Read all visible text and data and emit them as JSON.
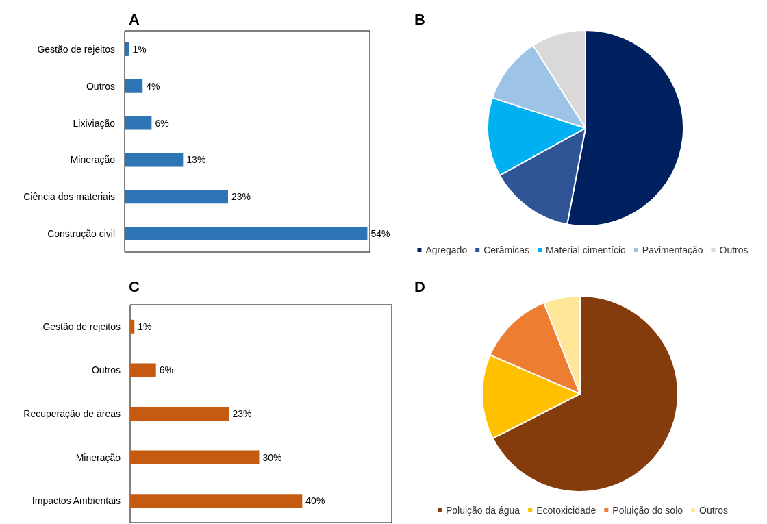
{
  "chart_data": [
    {
      "type": "bar",
      "title": "A",
      "orientation": "horizontal",
      "categories": [
        "Gestão de rejeitos",
        "Outros",
        "Lixiviação",
        "Mineração",
        "Ciência dos materiais",
        "Construção civil"
      ],
      "values": [
        1,
        4,
        6,
        13,
        23,
        54
      ],
      "value_labels": [
        "1%",
        "4%",
        "6%",
        "13%",
        "23%",
        "54%"
      ],
      "color": "#2e75b6"
    },
    {
      "type": "pie",
      "title": "B",
      "categories": [
        "Agregado",
        "Cerâmicas",
        "Material cimentício",
        "Pavimentação",
        "Outros"
      ],
      "values": [
        53,
        14,
        13,
        11,
        9
      ],
      "colors": [
        "#002060",
        "#2f5597",
        "#00b0f0",
        "#9dc3e6",
        "#d9d9d9"
      ],
      "legend": "bottom"
    },
    {
      "type": "bar",
      "title": "C",
      "orientation": "horizontal",
      "categories": [
        "Gestão de rejeitos",
        "Outros",
        "Recuperação de áreas",
        "Mineração",
        "Impactos Ambientais"
      ],
      "values": [
        1,
        6,
        23,
        30,
        40
      ],
      "value_labels": [
        "1%",
        "6%",
        "23%",
        "30%",
        "40%"
      ],
      "color": "#c55a11"
    },
    {
      "type": "pie",
      "title": "D",
      "categories": [
        "Poluição da água",
        "Ecotoxicidade",
        "Poluição do solo",
        "Outros"
      ],
      "values": [
        67.5,
        14,
        12.5,
        6
      ],
      "colors": [
        "#843c0c",
        "#ffc000",
        "#ed7d31",
        "#ffe699"
      ],
      "legend": "bottom"
    }
  ]
}
